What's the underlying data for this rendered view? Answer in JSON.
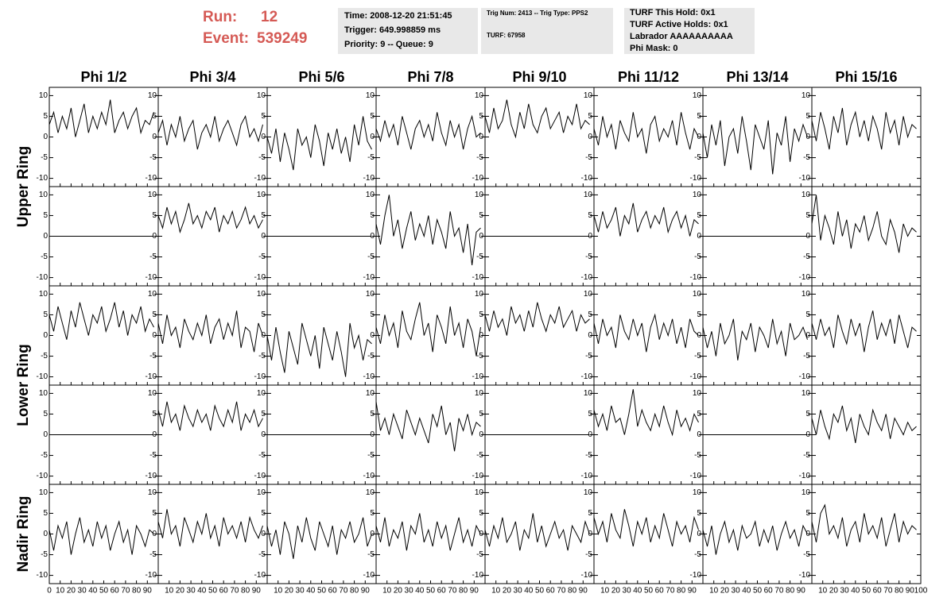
{
  "header": {
    "run_label": "Run:",
    "run": "12",
    "event_label": "Event:",
    "event": "539249",
    "info": [
      [
        "Time: 2008-12-20 21:51:45",
        "Trigger: 649.998859 ms",
        "Priority: 9 -- Queue: 9"
      ],
      [
        "Trig Num: 2413 -- Trig Type: PPS2",
        "TURF: 67958"
      ],
      [
        "TURF This Hold: 0x1",
        "TURF Active Holds: 0x1",
        "Labrador AAAAAAAAAA",
        "Phi Mask: 0"
      ]
    ]
  },
  "chart_data": {
    "type": "line",
    "color": "#000000",
    "columns": [
      "Phi 1/2",
      "Phi 3/4",
      "Phi 5/6",
      "Phi 7/8",
      "Phi 9/10",
      "Phi 11/12",
      "Phi 13/14",
      "Phi 15/16"
    ],
    "row_labels": [
      "Upper Ring",
      "Lower Ring",
      "Nadir Ring"
    ],
    "x": [
      0,
      4,
      8,
      12,
      16,
      20,
      24,
      28,
      32,
      36,
      40,
      44,
      48,
      52,
      56,
      60,
      64,
      68,
      72,
      76,
      80,
      84,
      88,
      92,
      96
    ],
    "xlim": [
      0,
      100
    ],
    "xticks": [
      0,
      10,
      20,
      30,
      40,
      50,
      60,
      70,
      80,
      90,
      100
    ],
    "ylim": [
      -12,
      12
    ],
    "yticks": [
      -10,
      -5,
      0,
      5,
      10
    ],
    "panels": [
      [
        [
          3,
          6,
          1,
          5,
          2,
          7,
          0,
          4,
          8,
          1,
          5,
          2,
          6,
          3,
          9,
          1,
          4,
          6,
          2,
          5,
          7,
          1,
          4,
          3,
          6
        ],
        [
          1,
          4,
          -2,
          3,
          0,
          5,
          -1,
          2,
          4,
          -3,
          1,
          3,
          0,
          5,
          -1,
          2,
          4,
          1,
          -2,
          3,
          5,
          0,
          2,
          -1,
          3
        ],
        [
          0,
          -4,
          2,
          -6,
          1,
          -3,
          -8,
          2,
          -2,
          0,
          -5,
          3,
          -1,
          -7,
          1,
          -3,
          2,
          -4,
          0,
          -6,
          3,
          -2,
          5,
          -1,
          -3
        ],
        [
          2,
          -1,
          4,
          0,
          3,
          -2,
          5,
          1,
          -3,
          2,
          4,
          0,
          3,
          -1,
          6,
          1,
          -2,
          4,
          0,
          3,
          -3,
          2,
          5,
          0,
          1
        ],
        [
          5,
          1,
          7,
          2,
          4,
          9,
          3,
          0,
          6,
          2,
          8,
          3,
          1,
          5,
          7,
          2,
          4,
          6,
          1,
          5,
          3,
          8,
          2,
          4,
          3
        ],
        [
          2,
          -2,
          5,
          0,
          3,
          -3,
          4,
          1,
          -1,
          6,
          0,
          2,
          -4,
          3,
          5,
          -1,
          2,
          0,
          4,
          -2,
          6,
          1,
          -3,
          2,
          0
        ],
        [
          1,
          -5,
          3,
          -2,
          4,
          -7,
          0,
          2,
          -4,
          5,
          -1,
          -8,
          3,
          0,
          -3,
          4,
          -9,
          1,
          -2,
          5,
          -6,
          2,
          -1,
          3,
          0
        ],
        [
          4,
          -1,
          6,
          2,
          -3,
          5,
          1,
          7,
          -2,
          3,
          6,
          0,
          4,
          -1,
          5,
          2,
          -3,
          6,
          1,
          4,
          -2,
          5,
          0,
          3,
          2
        ]
      ],
      [
        [
          0,
          0,
          0,
          0,
          0,
          0,
          0,
          0,
          0,
          0,
          0,
          0,
          0,
          0,
          0,
          0,
          0,
          0,
          0,
          0,
          0,
          0,
          0,
          0,
          0
        ],
        [
          5,
          2,
          7,
          3,
          6,
          1,
          4,
          8,
          3,
          5,
          2,
          6,
          4,
          7,
          1,
          5,
          3,
          6,
          2,
          4,
          7,
          3,
          5,
          2,
          4
        ],
        [
          0,
          0,
          0,
          0,
          0,
          0,
          0,
          0,
          0,
          0,
          0,
          0,
          0,
          0,
          0,
          0,
          0,
          0,
          0,
          0,
          0,
          0,
          0,
          0,
          0
        ],
        [
          3,
          -2,
          5,
          10,
          0,
          4,
          -3,
          2,
          6,
          -1,
          3,
          0,
          5,
          -2,
          4,
          1,
          -3,
          6,
          0,
          2,
          -4,
          3,
          -7,
          1,
          2
        ],
        [
          0,
          0,
          0,
          0,
          0,
          0,
          0,
          0,
          0,
          0,
          0,
          0,
          0,
          0,
          0,
          0,
          0,
          0,
          0,
          0,
          0,
          0,
          0,
          0,
          0
        ],
        [
          5,
          1,
          6,
          2,
          4,
          7,
          0,
          5,
          3,
          8,
          1,
          4,
          6,
          2,
          5,
          3,
          7,
          1,
          4,
          6,
          2,
          5,
          0,
          4,
          3
        ],
        [
          0,
          0,
          0,
          0,
          0,
          0,
          0,
          0,
          0,
          0,
          0,
          0,
          0,
          0,
          0,
          0,
          0,
          0,
          0,
          0,
          0,
          0,
          0,
          0,
          0
        ],
        [
          3,
          10,
          -1,
          5,
          2,
          -2,
          6,
          0,
          4,
          -3,
          3,
          1,
          5,
          -1,
          2,
          6,
          0,
          -2,
          4,
          1,
          -4,
          3,
          0,
          2,
          1
        ]
      ],
      [
        [
          5,
          1,
          7,
          3,
          -1,
          6,
          2,
          8,
          4,
          0,
          5,
          3,
          7,
          1,
          4,
          8,
          2,
          6,
          0,
          5,
          3,
          7,
          1,
          4,
          2
        ],
        [
          3,
          -2,
          5,
          0,
          2,
          -3,
          4,
          1,
          -1,
          3,
          0,
          5,
          -2,
          2,
          4,
          -1,
          3,
          0,
          6,
          -3,
          2,
          1,
          -4,
          3,
          0
        ],
        [
          0,
          -6,
          2,
          -4,
          -9,
          1,
          -3,
          -7,
          3,
          -1,
          -5,
          0,
          -8,
          2,
          -2,
          -6,
          1,
          -4,
          -10,
          3,
          -3,
          0,
          -6,
          -1,
          -2
        ],
        [
          2,
          -2,
          5,
          0,
          3,
          -3,
          6,
          1,
          -1,
          4,
          8,
          0,
          3,
          -4,
          5,
          2,
          -2,
          7,
          0,
          3,
          -3,
          4,
          1,
          -5,
          2
        ],
        [
          5,
          1,
          6,
          2,
          4,
          0,
          7,
          3,
          5,
          1,
          6,
          2,
          8,
          4,
          1,
          5,
          3,
          7,
          2,
          4,
          6,
          1,
          5,
          3,
          4
        ],
        [
          3,
          -2,
          4,
          0,
          2,
          -3,
          5,
          1,
          -1,
          4,
          0,
          3,
          -4,
          2,
          5,
          -1,
          3,
          0,
          4,
          -2,
          2,
          -3,
          4,
          1,
          0
        ],
        [
          2,
          -3,
          1,
          -5,
          3,
          -2,
          0,
          4,
          -6,
          1,
          -1,
          3,
          -4,
          2,
          0,
          -3,
          4,
          -2,
          1,
          -5,
          3,
          -1,
          0,
          2,
          -1
        ],
        [
          3,
          -1,
          4,
          0,
          2,
          -3,
          5,
          1,
          -2,
          4,
          0,
          3,
          -4,
          2,
          6,
          -1,
          3,
          0,
          4,
          -2,
          5,
          1,
          -3,
          2,
          1
        ]
      ],
      [
        [
          0,
          0,
          0,
          0,
          0,
          0,
          0,
          0,
          0,
          0,
          0,
          0,
          0,
          0,
          0,
          0,
          0,
          0,
          0,
          0,
          0,
          0,
          0,
          0,
          0
        ],
        [
          6,
          2,
          8,
          3,
          5,
          1,
          7,
          4,
          2,
          6,
          3,
          5,
          1,
          7,
          4,
          2,
          6,
          3,
          8,
          1,
          5,
          3,
          6,
          2,
          4
        ],
        [
          0,
          0,
          0,
          0,
          0,
          0,
          0,
          0,
          0,
          0,
          0,
          0,
          0,
          0,
          0,
          0,
          0,
          0,
          0,
          0,
          0,
          0,
          0,
          0,
          0
        ],
        [
          8,
          1,
          4,
          0,
          5,
          2,
          -1,
          6,
          3,
          0,
          4,
          1,
          -2,
          5,
          2,
          7,
          0,
          3,
          -4,
          4,
          1,
          5,
          0,
          3,
          2
        ],
        [
          0,
          0,
          0,
          0,
          0,
          0,
          0,
          0,
          0,
          0,
          0,
          0,
          0,
          0,
          0,
          0,
          0,
          0,
          0,
          0,
          0,
          0,
          0,
          0,
          0
        ],
        [
          6,
          2,
          5,
          1,
          7,
          3,
          4,
          0,
          5,
          11,
          2,
          6,
          3,
          1,
          5,
          2,
          7,
          3,
          0,
          6,
          2,
          4,
          1,
          5,
          3
        ],
        [
          0,
          0,
          0,
          0,
          0,
          0,
          0,
          0,
          0,
          0,
          0,
          0,
          0,
          0,
          0,
          0,
          0,
          0,
          0,
          0,
          0,
          0,
          0,
          0,
          0
        ],
        [
          4,
          0,
          6,
          2,
          -1,
          5,
          3,
          7,
          1,
          4,
          -2,
          5,
          2,
          0,
          6,
          3,
          1,
          5,
          -1,
          4,
          2,
          0,
          3,
          1,
          2
        ]
      ],
      [
        [
          1,
          -4,
          2,
          -1,
          3,
          -5,
          0,
          4,
          -2,
          1,
          -3,
          3,
          -1,
          2,
          -4,
          0,
          3,
          -2,
          1,
          -5,
          2,
          0,
          -3,
          1,
          0
        ],
        [
          3,
          -1,
          6,
          0,
          2,
          -3,
          4,
          1,
          -2,
          3,
          0,
          5,
          -1,
          2,
          -3,
          4,
          0,
          2,
          -1,
          3,
          -2,
          4,
          1,
          -1,
          2
        ],
        [
          2,
          -3,
          1,
          -5,
          3,
          0,
          -6,
          2,
          -2,
          4,
          -1,
          -4,
          3,
          0,
          -3,
          2,
          -5,
          1,
          -1,
          3,
          -2,
          0,
          4,
          -3,
          0
        ],
        [
          2,
          -2,
          4,
          -3,
          1,
          -1,
          3,
          -4,
          2,
          0,
          5,
          -2,
          1,
          -3,
          3,
          -1,
          2,
          -4,
          0,
          4,
          -2,
          1,
          -3,
          2,
          0
        ],
        [
          1,
          -3,
          2,
          -1,
          4,
          -2,
          0,
          3,
          -4,
          1,
          -1,
          5,
          -2,
          2,
          -3,
          0,
          3,
          -1,
          1,
          -4,
          2,
          0,
          -2,
          3,
          0
        ],
        [
          4,
          0,
          3,
          -2,
          5,
          1,
          -1,
          6,
          2,
          -3,
          3,
          0,
          4,
          -2,
          2,
          -1,
          5,
          1,
          -3,
          3,
          0,
          2,
          -2,
          4,
          1
        ],
        [
          1,
          -3,
          2,
          -5,
          0,
          3,
          -2,
          1,
          -4,
          2,
          -1,
          0,
          3,
          -3,
          1,
          -2,
          2,
          -4,
          0,
          3,
          -1,
          1,
          -3,
          2,
          0
        ],
        [
          3,
          -2,
          5,
          7,
          0,
          2,
          -1,
          4,
          -3,
          1,
          3,
          -2,
          5,
          0,
          2,
          -1,
          4,
          -3,
          1,
          5,
          -2,
          3,
          0,
          2,
          1
        ]
      ]
    ]
  }
}
